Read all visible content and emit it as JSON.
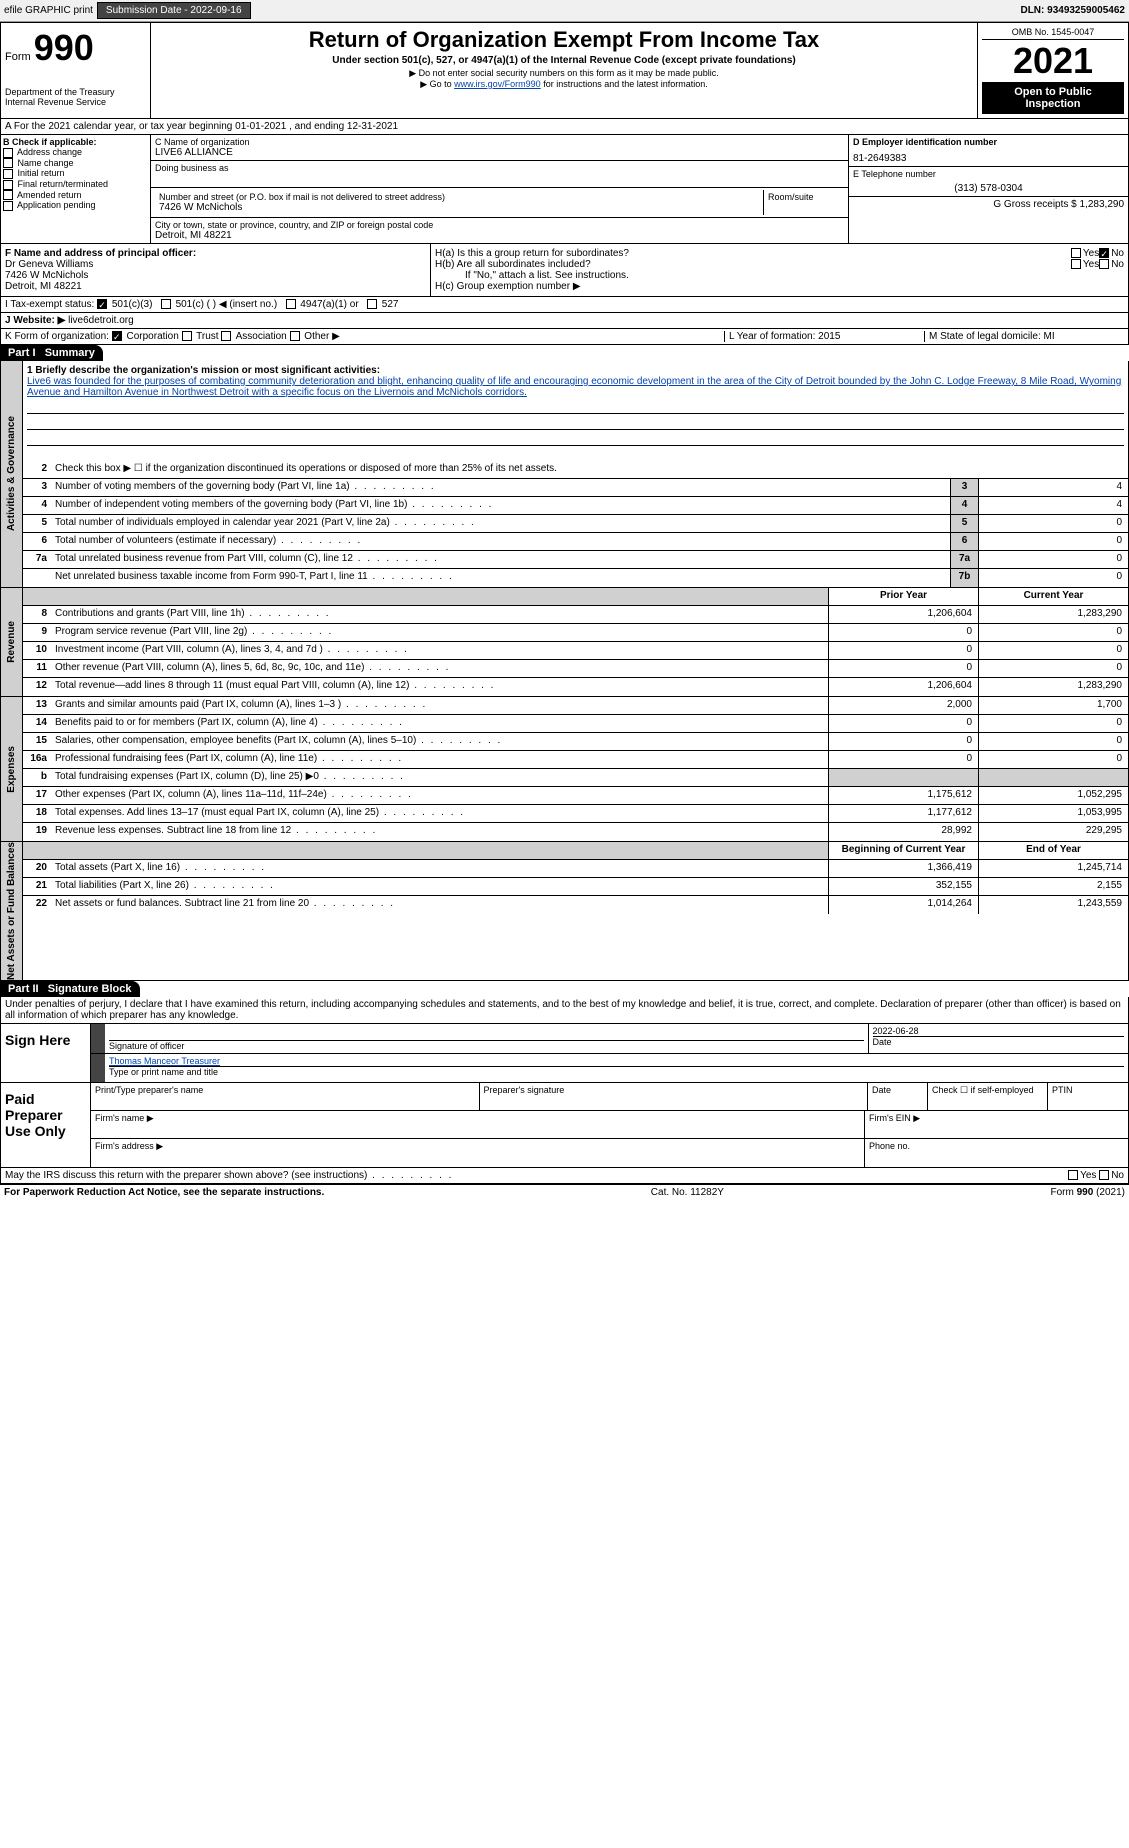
{
  "topbar": {
    "efile": "efile GRAPHIC print",
    "submission": "Submission Date - 2022-09-16",
    "dln": "DLN: 93493259005462"
  },
  "header": {
    "form": "Form",
    "num": "990",
    "dept": "Department of the Treasury Internal Revenue Service",
    "title": "Return of Organization Exempt From Income Tax",
    "sub1": "Under section 501(c), 527, or 4947(a)(1) of the Internal Revenue Code (except private foundations)",
    "sub2": "▶ Do not enter social security numbers on this form as it may be made public.",
    "sub3": "▶ Go to www.irs.gov/Form990 for instructions and the latest information.",
    "omb": "OMB No. 1545-0047",
    "year": "2021",
    "inspection": "Open to Public Inspection"
  },
  "rowA": "A For the 2021 calendar year, or tax year beginning 01-01-2021     , and ending 12-31-2021",
  "colB": {
    "title": "B Check if applicable:",
    "items": [
      "Address change",
      "Name change",
      "Initial return",
      "Final return/terminated",
      "Amended return",
      "Application pending"
    ]
  },
  "colC": {
    "nameLabel": "C Name of organization",
    "name": "LIVE6 ALLIANCE",
    "dba": "Doing business as",
    "streetLabel": "Number and street (or P.O. box if mail is not delivered to street address)",
    "street": "7426 W McNichols",
    "room": "Room/suite",
    "cityLabel": "City or town, state or province, country, and ZIP or foreign postal code",
    "city": "Detroit, MI  48221"
  },
  "colD": {
    "einLabel": "D Employer identification number",
    "ein": "81-2649383",
    "telLabel": "E Telephone number",
    "tel": "(313) 578-0304",
    "receipts": "G Gross receipts $ 1,283,290"
  },
  "colF": {
    "label": "F  Name and address of principal officer:",
    "name": "Dr Geneva Williams",
    "addr1": "7426 W McNichols",
    "addr2": "Detroit, MI  48221"
  },
  "colH": {
    "a": "H(a)  Is this a group return for subordinates?",
    "b": "H(b)  Are all subordinates included?",
    "bnote": "If \"No,\" attach a list. See instructions.",
    "c": "H(c)  Group exemption number ▶",
    "yes": "Yes",
    "no": "No"
  },
  "taxExempt": {
    "label": "I  Tax-exempt status:",
    "opts": [
      "501(c)(3)",
      "501(c) (  ) ◀ (insert no.)",
      "4947(a)(1) or",
      "527"
    ]
  },
  "website": {
    "label": "J  Website: ▶",
    "val": "live6detroit.org"
  },
  "formOrg": {
    "label": "K Form of organization:",
    "opts": [
      "Corporation",
      "Trust",
      "Association",
      "Other ▶"
    ]
  },
  "LM": {
    "L": "L Year of formation: 2015",
    "M": "M State of legal domicile: MI"
  },
  "part1": {
    "title": "Part I",
    "name": "Summary",
    "mission_label": "1  Briefly describe the organization's mission or most significant activities:",
    "mission": "Live6 was founded for the purposes of combating community deterioration and blight, enhancing quality of life and encouraging economic development in the area of the City of Detroit bounded by the John C. Lodge Freeway, 8 Mile Road, Wyoming Avenue and Hamilton Avenue in Northwest Detroit with a specific focus on the Livernois and McNichols corridors.",
    "line2": "Check this box ▶ ☐  if the organization discontinued its operations or disposed of more than 25% of its net assets.",
    "vtab_ag": "Activities & Governance",
    "vtab_rev": "Revenue",
    "vtab_exp": "Expenses",
    "vtab_net": "Net Assets or Fund Balances",
    "prior": "Prior Year",
    "current": "Current Year",
    "begin": "Beginning of Current Year",
    "end": "End of Year",
    "lines_ag": [
      {
        "n": "3",
        "t": "Number of voting members of the governing body (Part VI, line 1a)",
        "b": "3",
        "v": "4"
      },
      {
        "n": "4",
        "t": "Number of independent voting members of the governing body (Part VI, line 1b)",
        "b": "4",
        "v": "4"
      },
      {
        "n": "5",
        "t": "Total number of individuals employed in calendar year 2021 (Part V, line 2a)",
        "b": "5",
        "v": "0"
      },
      {
        "n": "6",
        "t": "Total number of volunteers (estimate if necessary)",
        "b": "6",
        "v": "0"
      },
      {
        "n": "7a",
        "t": "Total unrelated business revenue from Part VIII, column (C), line 12",
        "b": "7a",
        "v": "0"
      },
      {
        "n": "",
        "t": "Net unrelated business taxable income from Form 990-T, Part I, line 11",
        "b": "7b",
        "v": "0"
      }
    ],
    "lines_rev": [
      {
        "n": "8",
        "t": "Contributions and grants (Part VIII, line 1h)",
        "p": "1,206,604",
        "c": "1,283,290"
      },
      {
        "n": "9",
        "t": "Program service revenue (Part VIII, line 2g)",
        "p": "0",
        "c": "0"
      },
      {
        "n": "10",
        "t": "Investment income (Part VIII, column (A), lines 3, 4, and 7d )",
        "p": "0",
        "c": "0"
      },
      {
        "n": "11",
        "t": "Other revenue (Part VIII, column (A), lines 5, 6d, 8c, 9c, 10c, and 11e)",
        "p": "0",
        "c": "0"
      },
      {
        "n": "12",
        "t": "Total revenue—add lines 8 through 11 (must equal Part VIII, column (A), line 12)",
        "p": "1,206,604",
        "c": "1,283,290"
      }
    ],
    "lines_exp": [
      {
        "n": "13",
        "t": "Grants and similar amounts paid (Part IX, column (A), lines 1–3 )",
        "p": "2,000",
        "c": "1,700"
      },
      {
        "n": "14",
        "t": "Benefits paid to or for members (Part IX, column (A), line 4)",
        "p": "0",
        "c": "0"
      },
      {
        "n": "15",
        "t": "Salaries, other compensation, employee benefits (Part IX, column (A), lines 5–10)",
        "p": "0",
        "c": "0"
      },
      {
        "n": "16a",
        "t": "Professional fundraising fees (Part IX, column (A), line 11e)",
        "p": "0",
        "c": "0"
      },
      {
        "n": "b",
        "t": "Total fundraising expenses (Part IX, column (D), line 25) ▶0",
        "p": "",
        "c": "",
        "shaded": true
      },
      {
        "n": "17",
        "t": "Other expenses (Part IX, column (A), lines 11a–11d, 11f–24e)",
        "p": "1,175,612",
        "c": "1,052,295"
      },
      {
        "n": "18",
        "t": "Total expenses. Add lines 13–17 (must equal Part IX, column (A), line 25)",
        "p": "1,177,612",
        "c": "1,053,995"
      },
      {
        "n": "19",
        "t": "Revenue less expenses. Subtract line 18 from line 12",
        "p": "28,992",
        "c": "229,295"
      }
    ],
    "lines_net": [
      {
        "n": "20",
        "t": "Total assets (Part X, line 16)",
        "p": "1,366,419",
        "c": "1,245,714"
      },
      {
        "n": "21",
        "t": "Total liabilities (Part X, line 26)",
        "p": "352,155",
        "c": "2,155"
      },
      {
        "n": "22",
        "t": "Net assets or fund balances. Subtract line 21 from line 20",
        "p": "1,014,264",
        "c": "1,243,559"
      }
    ]
  },
  "part2": {
    "title": "Part II",
    "name": "Signature Block",
    "perjury": "Under penalties of perjury, I declare that I have examined this return, including accompanying schedules and statements, and to the best of my knowledge and belief, it is true, correct, and complete. Declaration of preparer (other than officer) is based on all information of which preparer has any knowledge.",
    "sign": "Sign Here",
    "sigOfficer": "Signature of officer",
    "date": "Date",
    "dateVal": "2022-06-28",
    "typed": "Thomas Manceor  Treasurer",
    "typedLabel": "Type or print name and title",
    "paid": "Paid Preparer Use Only",
    "prepName": "Print/Type preparer's name",
    "prepSig": "Preparer's signature",
    "prepDate": "Date",
    "checkSelf": "Check ☐ if self-employed",
    "ptin": "PTIN",
    "firmName": "Firm's name    ▶",
    "firmEin": "Firm's EIN ▶",
    "firmAddr": "Firm's address ▶",
    "phone": "Phone no.",
    "discuss": "May the IRS discuss this return with the preparer shown above? (see instructions)"
  },
  "footer": {
    "left": "For Paperwork Reduction Act Notice, see the separate instructions.",
    "mid": "Cat. No. 11282Y",
    "right": "Form 990 (2021)"
  }
}
